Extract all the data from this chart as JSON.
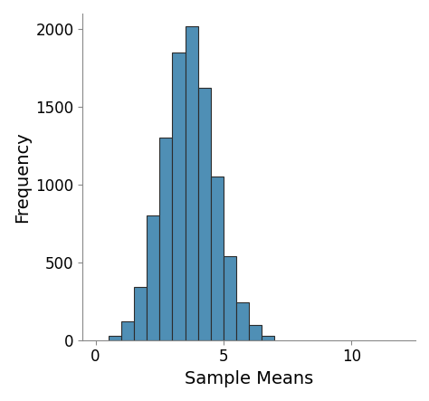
{
  "title": "",
  "xlabel": "Sample Means",
  "ylabel": "Frequency",
  "bar_color": "#4f8fb5",
  "edge_color": "#2c2c2c",
  "background_color": "#ffffff",
  "xlim": [
    -0.5,
    12.5
  ],
  "ylim": [
    0,
    2100
  ],
  "yticks": [
    0,
    500,
    1000,
    1500,
    2000
  ],
  "xticks": [
    0,
    5,
    10
  ],
  "bin_left": [
    0.5,
    1.0,
    1.5,
    2.0,
    2.5,
    3.0,
    3.5,
    4.0,
    4.5,
    5.0,
    5.5,
    6.0,
    6.5
  ],
  "frequencies": [
    30,
    120,
    340,
    800,
    1300,
    1850,
    2020,
    1620,
    1050,
    540,
    240,
    100,
    30
  ],
  "bin_width": 0.5,
  "xlabel_fontsize": 14,
  "ylabel_fontsize": 14,
  "tick_fontsize": 12,
  "spine_color": "#888888"
}
